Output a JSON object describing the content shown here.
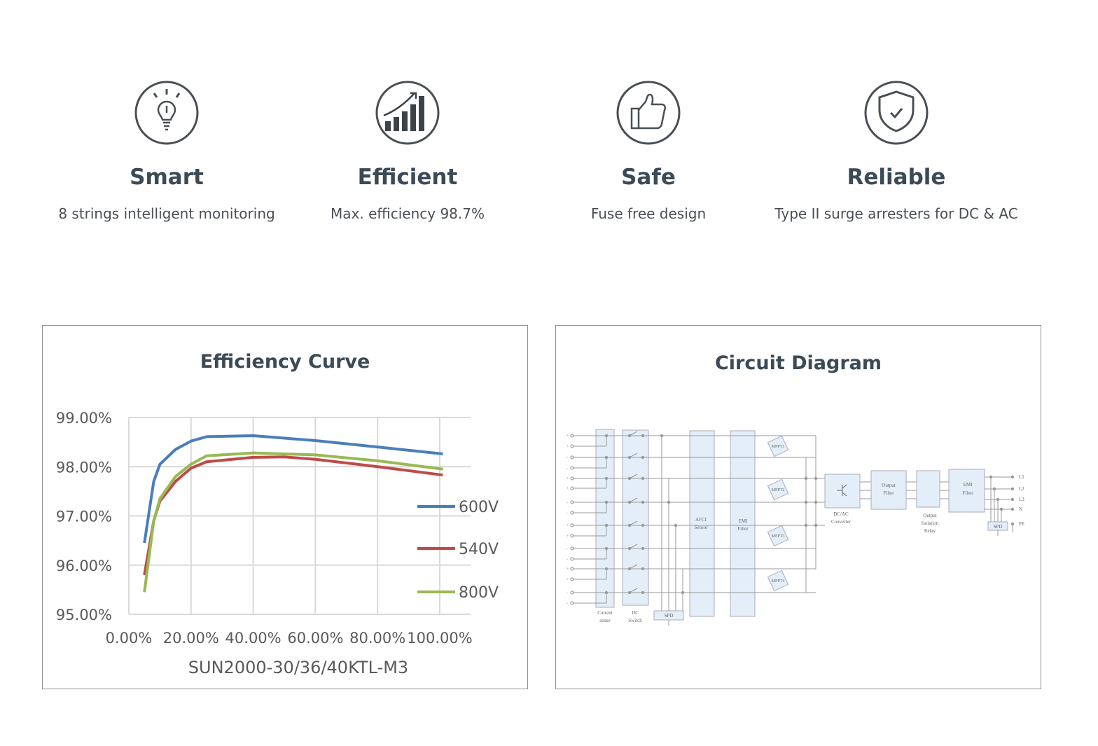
{
  "features": [
    {
      "icon": "lightbulb-icon",
      "title": "Smart",
      "subtitle": "8 strings intelligent monitoring"
    },
    {
      "icon": "bar-chart-growth-icon",
      "title": "Efficient",
      "subtitle": "Max. efficiency 98.7%"
    },
    {
      "icon": "thumbs-up-icon",
      "title": "Safe",
      "subtitle": "Fuse free design"
    },
    {
      "icon": "shield-check-icon",
      "title": "Reliable",
      "subtitle": "Type II surge arresters for DC & AC"
    }
  ],
  "efficiency_panel": {
    "title": "Efficiency Curve"
  },
  "chart_data": {
    "type": "line",
    "title": "",
    "xlabel": "SUN2000-30/36/40KTL-M3",
    "ylabel": "",
    "xlim": [
      0,
      100
    ],
    "ylim": [
      95,
      99
    ],
    "x_ticks": [
      "0.00%",
      "20.00%",
      "40.00%",
      "60.00%",
      "80.00%",
      "100.00%"
    ],
    "y_ticks": [
      "99.00%",
      "98.00%",
      "97.00%",
      "96.00%",
      "95.00%"
    ],
    "grid": true,
    "legend_position": "right",
    "series": [
      {
        "name": "600V",
        "color": "#4a7ebb",
        "x": [
          5,
          8,
          10,
          15,
          20,
          25,
          40,
          60,
          80,
          101
        ],
        "y": [
          96.45,
          97.7,
          98.05,
          98.35,
          98.52,
          98.61,
          98.63,
          98.53,
          98.4,
          98.26
        ]
      },
      {
        "name": "540V",
        "color": "#be4b48",
        "x": [
          5,
          8,
          10,
          15,
          20,
          25,
          40,
          50,
          60,
          80,
          101
        ],
        "y": [
          95.8,
          96.9,
          97.3,
          97.7,
          97.97,
          98.1,
          98.19,
          98.2,
          98.15,
          98.0,
          97.83
        ]
      },
      {
        "name": "800V",
        "color": "#98b954",
        "x": [
          5,
          8,
          10,
          15,
          20,
          25,
          40,
          60,
          80,
          101
        ],
        "y": [
          95.45,
          96.9,
          97.35,
          97.8,
          98.05,
          98.22,
          98.28,
          98.24,
          98.12,
          97.95
        ]
      }
    ]
  },
  "circuit_panel": {
    "title": "Circuit Diagram",
    "labels": {
      "current_sense": [
        "Current",
        "sense"
      ],
      "dc_switch": [
        "DC",
        "Switch"
      ],
      "spd_dc": "SPD",
      "afci": [
        "AFCI",
        "Sensor"
      ],
      "emi_dc": [
        "EMI",
        "Filter"
      ],
      "mppt": [
        "MPPT1",
        "MPPT2",
        "MPPT3",
        "MPPT4"
      ],
      "dcac": [
        "DC/AC",
        "Converter"
      ],
      "output_filter": [
        "Output",
        "Filter"
      ],
      "relay": [
        "Output",
        "Isolation",
        "Relay"
      ],
      "emi_ac": [
        "EMI",
        "Filter"
      ],
      "spd_ac": "SPD",
      "outputs": [
        "L1",
        "L2",
        "L3",
        "N",
        "PE"
      ],
      "input_polarity": [
        "+",
        "+",
        "-",
        "-",
        "+",
        "+",
        "-",
        "-",
        "+",
        "+",
        "-",
        "-",
        "+",
        "+",
        "-",
        "-"
      ]
    }
  }
}
